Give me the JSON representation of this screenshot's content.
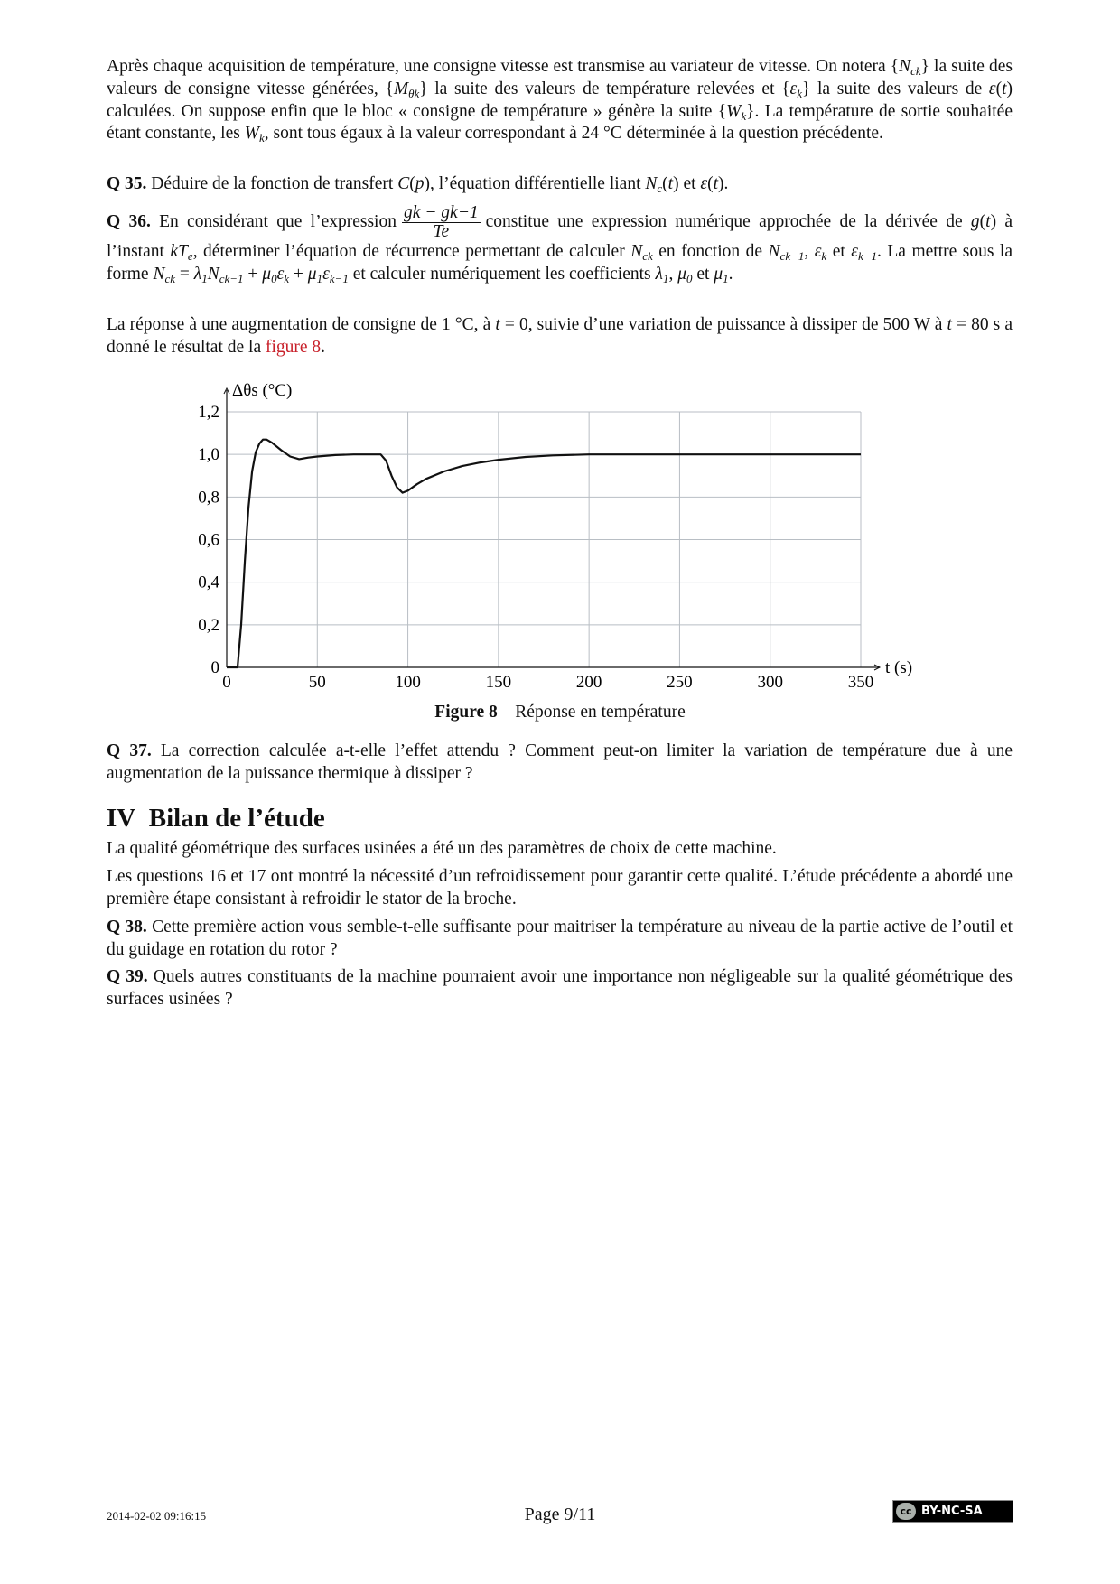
{
  "paragraphs": [
    {
      "id": "intro",
      "top": 62,
      "segs": [
        [
          "",
          "Après chaque acquisition de température, une consigne vitesse est transmise au variateur de vitesse. On notera {"
        ],
        [
          "i",
          "N"
        ],
        [
          "sub",
          "ck"
        ],
        [
          "",
          "} la suite des valeurs de consigne vitesse générées, {"
        ],
        [
          "i",
          "M"
        ],
        [
          "sub",
          "θk"
        ],
        [
          "",
          "} la suite des valeurs de température relevées et {"
        ],
        [
          "i",
          "ε"
        ],
        [
          "sub",
          "k"
        ],
        [
          "",
          "} la suite des valeurs de "
        ],
        [
          "i",
          "ε"
        ],
        [
          "",
          "("
        ],
        [
          "i",
          "t"
        ],
        [
          "",
          ") calculées. On suppose enfin que le bloc « consigne de température » génère la suite {"
        ],
        [
          "i",
          "W"
        ],
        [
          "sub",
          "k"
        ],
        [
          "",
          "}. La température de sortie souhaitée étant constante, les "
        ],
        [
          "i",
          "W"
        ],
        [
          "sub",
          "k"
        ],
        [
          "",
          ", sont tous égaux à la valeur correspondant à 24 °C déterminée à la question précédente."
        ]
      ]
    },
    {
      "id": "q35",
      "top": 192,
      "segs": [
        [
          "b",
          "Q 35."
        ],
        [
          "",
          "  Déduire de la fonction de transfert "
        ],
        [
          "i",
          "C"
        ],
        [
          "",
          "("
        ],
        [
          "i",
          "p"
        ],
        [
          "",
          "), l’équation différentielle liant "
        ],
        [
          "i",
          "N"
        ],
        [
          "sub",
          "c"
        ],
        [
          "",
          "("
        ],
        [
          "i",
          "t"
        ],
        [
          "",
          ") et "
        ],
        [
          "i",
          "ε"
        ],
        [
          "",
          "("
        ],
        [
          "i",
          "t"
        ],
        [
          "",
          ")."
        ]
      ]
    },
    {
      "id": "q36",
      "top": 226,
      "segs": [
        [
          "b",
          "Q 36."
        ],
        [
          "",
          "  En considérant que l’expression"
        ],
        [
          "frac",
          "g_k − g_{k−1}|T_e"
        ],
        [
          "",
          "constitue une expression numérique approchée de la dérivée de "
        ],
        [
          "i",
          "g"
        ],
        [
          "",
          "("
        ],
        [
          "i",
          "t"
        ],
        [
          "",
          ") à l’instant "
        ],
        [
          "i",
          "kT"
        ],
        [
          "sub",
          "e"
        ],
        [
          "",
          ", déterminer l’équation de récurrence permettant de calculer "
        ],
        [
          "i",
          "N"
        ],
        [
          "sub",
          "ck"
        ],
        [
          "",
          " en fonction de "
        ],
        [
          "i",
          "N"
        ],
        [
          "sub",
          "ck−1"
        ],
        [
          "",
          ", "
        ],
        [
          "i",
          "ε"
        ],
        [
          "sub",
          "k"
        ],
        [
          "",
          " et "
        ],
        [
          "i",
          "ε"
        ],
        [
          "sub",
          "k−1"
        ],
        [
          "",
          ". La mettre sous la forme "
        ],
        [
          "i",
          "N"
        ],
        [
          "sub",
          "ck"
        ],
        [
          "",
          " = "
        ],
        [
          "i",
          "λ"
        ],
        [
          "sub",
          "1"
        ],
        [
          "i",
          "N"
        ],
        [
          "sub",
          "ck−1"
        ],
        [
          "",
          " + "
        ],
        [
          "i",
          "μ"
        ],
        [
          "sub",
          "0"
        ],
        [
          "i",
          "ε"
        ],
        [
          "sub",
          "k"
        ],
        [
          "",
          " + "
        ],
        [
          "i",
          "μ"
        ],
        [
          "sub",
          "1"
        ],
        [
          "i",
          "ε"
        ],
        [
          "sub",
          "k−1"
        ],
        [
          "",
          " et calculer numériquement les coefficients "
        ],
        [
          "i",
          "λ"
        ],
        [
          "sub",
          "1"
        ],
        [
          "",
          ", "
        ],
        [
          "i",
          "μ"
        ],
        [
          "sub",
          "0"
        ],
        [
          "",
          " et "
        ],
        [
          "i",
          "μ"
        ],
        [
          "sub",
          "1"
        ],
        [
          "",
          "."
        ]
      ]
    },
    {
      "id": "reponse",
      "top": 348,
      "segs": [
        [
          "",
          "La réponse à une augmentation de consigne de 1 °C, à "
        ],
        [
          "i",
          "t"
        ],
        [
          "",
          " = 0, suivie d’une variation de puissance à dissiper de 500 W à "
        ],
        [
          "i",
          "t"
        ],
        [
          "",
          " = 80 s a donné le résultat de la "
        ],
        [
          "red",
          "figure 8"
        ],
        [
          "",
          "."
        ]
      ]
    },
    {
      "id": "q37",
      "top": 820,
      "segs": [
        [
          "b",
          "Q 37."
        ],
        [
          "",
          "  La correction calculée a-t-elle l’effet attendu ? Comment peut-on limiter la variation de température due à une augmentation de la puissance thermique à dissiper ?"
        ]
      ]
    },
    {
      "id": "bilan1",
      "top": 928,
      "segs": [
        [
          "",
          "La qualité géométrique des surfaces usinées a été un des paramètres de choix de cette machine."
        ]
      ]
    },
    {
      "id": "bilan2",
      "top": 959,
      "segs": [
        [
          "",
          "Les questions 16 et 17 ont montré la nécessité d’un refroidissement pour garantir cette qualité. L’étude précédente a abordé une première étape consistant à refroidir le stator de la broche."
        ]
      ]
    },
    {
      "id": "q38",
      "top": 1015,
      "segs": [
        [
          "b",
          "Q 38."
        ],
        [
          "",
          "  Cette première action vous semble-t-elle suffisante pour maitriser la température au niveau de la partie active de l’outil et du guidage en rotation du rotor ?"
        ]
      ]
    },
    {
      "id": "q39",
      "top": 1070,
      "segs": [
        [
          "b",
          "Q 39."
        ],
        [
          "",
          "  Quels autres constituants de la machine pourraient avoir une importance non négligeable sur la qualité géométrique des surfaces usinées ?"
        ]
      ]
    }
  ],
  "section": {
    "number": "IV",
    "title": "Bilan de l’étude"
  },
  "figure": {
    "label": "Figure 8",
    "caption": "Réponse en température"
  },
  "chart_data": {
    "type": "line",
    "title": "",
    "xlabel": "t (s)",
    "ylabel": "Δθs (°C)",
    "xlim": [
      0,
      350
    ],
    "ylim": [
      0,
      1.2
    ],
    "xticks": [
      0,
      50,
      100,
      150,
      200,
      250,
      300,
      350
    ],
    "yticks": [
      "0",
      "0,2",
      "0,4",
      "0,6",
      "0,8",
      "1,0",
      "1,2"
    ],
    "grid": true,
    "series": [
      {
        "x": [
          0,
          6,
          8,
          10,
          12,
          14,
          16,
          18,
          20,
          22,
          25,
          30,
          35,
          40,
          45,
          50,
          60,
          70,
          85,
          88,
          91,
          94,
          97,
          100,
          105,
          110,
          120,
          130,
          140,
          150,
          165,
          180,
          200,
          350
        ],
        "y": [
          0,
          0,
          0.2,
          0.5,
          0.75,
          0.92,
          1.01,
          1.05,
          1.07,
          1.07,
          1.055,
          1.02,
          0.99,
          0.978,
          0.985,
          0.99,
          0.997,
          1.0,
          1.0,
          0.97,
          0.9,
          0.845,
          0.82,
          0.83,
          0.86,
          0.885,
          0.92,
          0.945,
          0.962,
          0.975,
          0.988,
          0.995,
          1.0,
          1.0
        ]
      }
    ]
  },
  "footer": {
    "date": "2014-02-02 09:16:15",
    "page": "Page 9/11",
    "license": "BY-NC-SA",
    "license_icon": "cc"
  }
}
